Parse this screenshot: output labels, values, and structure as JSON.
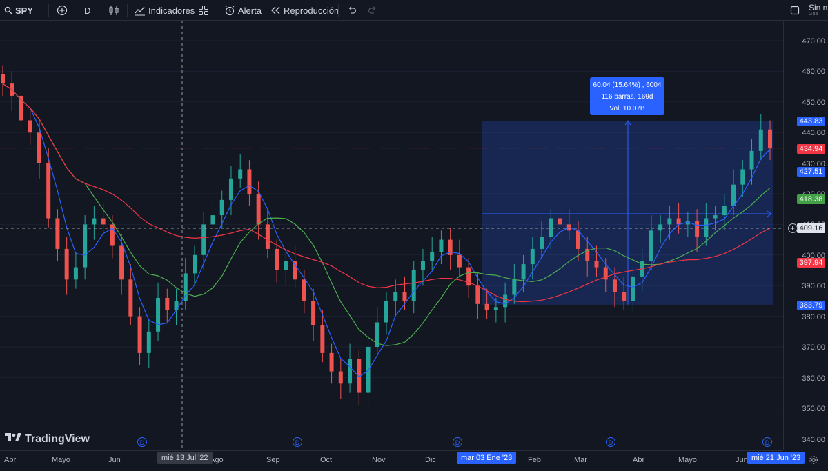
{
  "toolbar": {
    "symbol": "SPY",
    "interval": "D",
    "indicators_label": "Indicadores",
    "alert_label": "Alerta",
    "replay_label": "Reproducción",
    "right_label": "Sin no",
    "right_sublabel": "Gua"
  },
  "measure": {
    "line1": "60.04 (15.64%) , 6004",
    "line2": "116 barras, 169d",
    "line3": "Vol. 10.07B"
  },
  "price_axis": {
    "ticks": [
      "470.00",
      "460.00",
      "450.00",
      "440.00",
      "430.00",
      "420.00",
      "410.00",
      "400.00",
      "390.00",
      "380.00",
      "370.00",
      "360.00",
      "350.00",
      "340.00"
    ],
    "badges": {
      "measure_top": "443.83",
      "last_price": "434.94",
      "ma_blue": "427.51",
      "ma_green": "418.38",
      "crosshair": "409.16",
      "ma_red": "397.94",
      "measure_bottom": "383.79"
    }
  },
  "time_axis": {
    "labels": [
      "Abr",
      "Mayo",
      "Jun",
      "Ago",
      "Sep",
      "Oct",
      "Nov",
      "Dic",
      "Feb",
      "Mar",
      "Abr",
      "Mayo",
      "Jun"
    ],
    "crosshair_date": "mié 13 Jul '22",
    "measure_start": "mar 03 Ene '23",
    "measure_end": "mié 21 Jun '23"
  },
  "logo": "TradingView",
  "dividend_marker": "D",
  "colors": {
    "up": "#26a69a",
    "down": "#ef5350",
    "ma_blue": "#2962ff",
    "ma_green": "#4caf50",
    "ma_red": "#f23645",
    "measure_fill": "#2962ff",
    "background": "#131722"
  },
  "chart_data": {
    "type": "candlestick",
    "symbol": "SPY",
    "ylim": [
      340,
      475
    ],
    "measure": {
      "from": 383.79,
      "to": 443.83
    },
    "series": [
      {
        "color": "#2962ff",
        "last": 427.51
      },
      {
        "color": "#4caf50",
        "last": 418.38
      },
      {
        "color": "#f23645",
        "last": 397.94
      }
    ],
    "last_price": 434.94,
    "points": [
      [
        "Abr",
        456
      ],
      [
        "Abr",
        452
      ],
      [
        "Abr",
        444
      ],
      [
        "Mayo",
        440
      ],
      [
        "Mayo",
        430
      ],
      [
        "Mayo",
        412
      ],
      [
        "Mayo",
        402
      ],
      [
        "Mayo",
        392
      ],
      [
        "Mayo",
        396
      ],
      [
        "Mayo",
        410
      ],
      [
        "Jun",
        412
      ],
      [
        "Jun",
        410
      ],
      [
        "Jun",
        403
      ],
      [
        "Jun",
        392
      ],
      [
        "Jun",
        380
      ],
      [
        "Jun",
        368
      ],
      [
        "Jun",
        375
      ],
      [
        "Jul",
        386
      ],
      [
        "Jul",
        382
      ],
      [
        "Jul",
        385
      ],
      [
        "Jul",
        394
      ],
      [
        "Jul",
        400
      ],
      [
        "Jul",
        410
      ],
      [
        "Ago",
        413
      ],
      [
        "Ago",
        418
      ],
      [
        "Ago",
        425
      ],
      [
        "Ago",
        428
      ],
      [
        "Ago",
        420
      ],
      [
        "Sep",
        410
      ],
      [
        "Sep",
        402
      ],
      [
        "Sep",
        395
      ],
      [
        "Sep",
        398
      ],
      [
        "Sep",
        392
      ],
      [
        "Sep",
        385
      ],
      [
        "Sep",
        377
      ],
      [
        "Sep",
        368
      ],
      [
        "Oct",
        362
      ],
      [
        "Oct",
        358
      ],
      [
        "Oct",
        366
      ],
      [
        "Oct",
        355
      ],
      [
        "Oct",
        370
      ],
      [
        "Oct",
        378
      ],
      [
        "Oct",
        385
      ],
      [
        "Nov",
        388
      ],
      [
        "Nov",
        385
      ],
      [
        "Nov",
        395
      ],
      [
        "Nov",
        398
      ],
      [
        "Nov",
        401
      ],
      [
        "Dic",
        405
      ],
      [
        "Dic",
        400
      ],
      [
        "Dic",
        396
      ],
      [
        "Dic",
        390
      ],
      [
        "Dic",
        384
      ],
      [
        "Dic",
        382
      ],
      [
        "Ene",
        383
      ],
      [
        "Ene",
        387
      ],
      [
        "Ene",
        392
      ],
      [
        "Ene",
        397
      ],
      [
        "Ene",
        402
      ],
      [
        "Ene",
        406
      ],
      [
        "Feb",
        412
      ],
      [
        "Feb",
        410
      ],
      [
        "Feb",
        408
      ],
      [
        "Feb",
        402
      ],
      [
        "Feb",
        398
      ],
      [
        "Mar",
        396
      ],
      [
        "Mar",
        392
      ],
      [
        "Mar",
        388
      ],
      [
        "Mar",
        385
      ],
      [
        "Mar",
        393
      ],
      [
        "Mar",
        398
      ],
      [
        "Abr",
        408
      ],
      [
        "Abr",
        410
      ],
      [
        "Abr",
        412
      ],
      [
        "Abr",
        410
      ],
      [
        "Mayo",
        411
      ],
      [
        "Mayo",
        406
      ],
      [
        "Mayo",
        412
      ],
      [
        "Mayo",
        413
      ],
      [
        "Mayo",
        416
      ],
      [
        "Jun",
        423
      ],
      [
        "Jun",
        428
      ],
      [
        "Jun",
        434
      ],
      [
        "Jun",
        441
      ],
      [
        "Jun",
        435
      ]
    ]
  }
}
